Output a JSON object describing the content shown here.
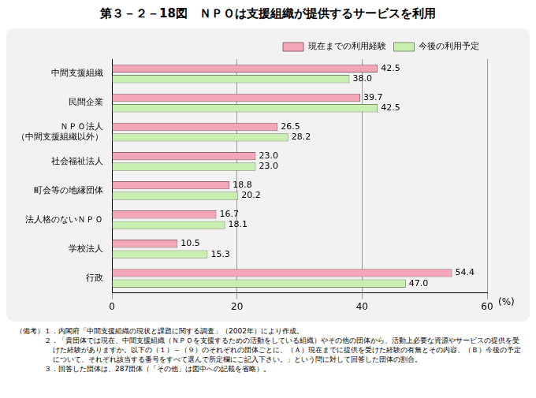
{
  "chart_data": {
    "type": "bar",
    "orientation": "horizontal",
    "title": "第３－２－18図　ＮＰＯは支援組織が提供するサービスを利用",
    "x_label": "(%)",
    "categories": [
      "中間支援組織",
      "民間企業",
      "ＮＰＯ法人\n（中間支援組織以外）",
      "社会福祉法人",
      "町会等の地縁団体",
      "法人格のないＮＰＯ",
      "学校法人",
      "行政"
    ],
    "series": [
      {
        "name": "現在までの利用経験",
        "color": "#f2a6b8",
        "values": [
          42.5,
          39.7,
          26.5,
          23.0,
          18.8,
          16.7,
          10.5,
          54.4
        ],
        "value_labels": [
          "42.5",
          "39.7",
          "26.5",
          "23.0",
          "18.8",
          "16.7",
          "10.5",
          "54.4"
        ]
      },
      {
        "name": "今後の利用予定",
        "color": "#c9efb0",
        "values": [
          38.0,
          42.5,
          28.2,
          23.0,
          20.2,
          18.1,
          15.3,
          47.0
        ],
        "value_labels": [
          "38.0",
          "42.5",
          "28.2",
          "23.0",
          "20.2",
          "18.1",
          "15.3",
          "47.0"
        ]
      }
    ],
    "xlim": [
      0,
      60
    ],
    "xticks": [
      0,
      20,
      40,
      60
    ],
    "grid": true,
    "legend": "top-right",
    "data_labels": true,
    "annotations": {
      "head": "（備考）",
      "items": [
        "１．内閣府「中間支援組織の現状と課題に関する調査」（2002年）により作成。",
        "２．「貴団体では現在、中間支援組織（ＮＰＯを支援するための活動をしている組織）やその他の団体から、活動上必要な資源やサービスの提供を受けた経験がありますか。以下の（１）～（９）のそれぞれの団体ごとに、（Ａ）現在までに提供を受けた経験の有無とその内容、（Ｂ）今後の予定について、それぞれ該当する番号をすべて選んで所定欄にご記入下さい。」という問に対して回答した団体の割合。",
        "３．回答した団体は、287団体（「その他」は図中への記載を省略）。"
      ]
    }
  }
}
